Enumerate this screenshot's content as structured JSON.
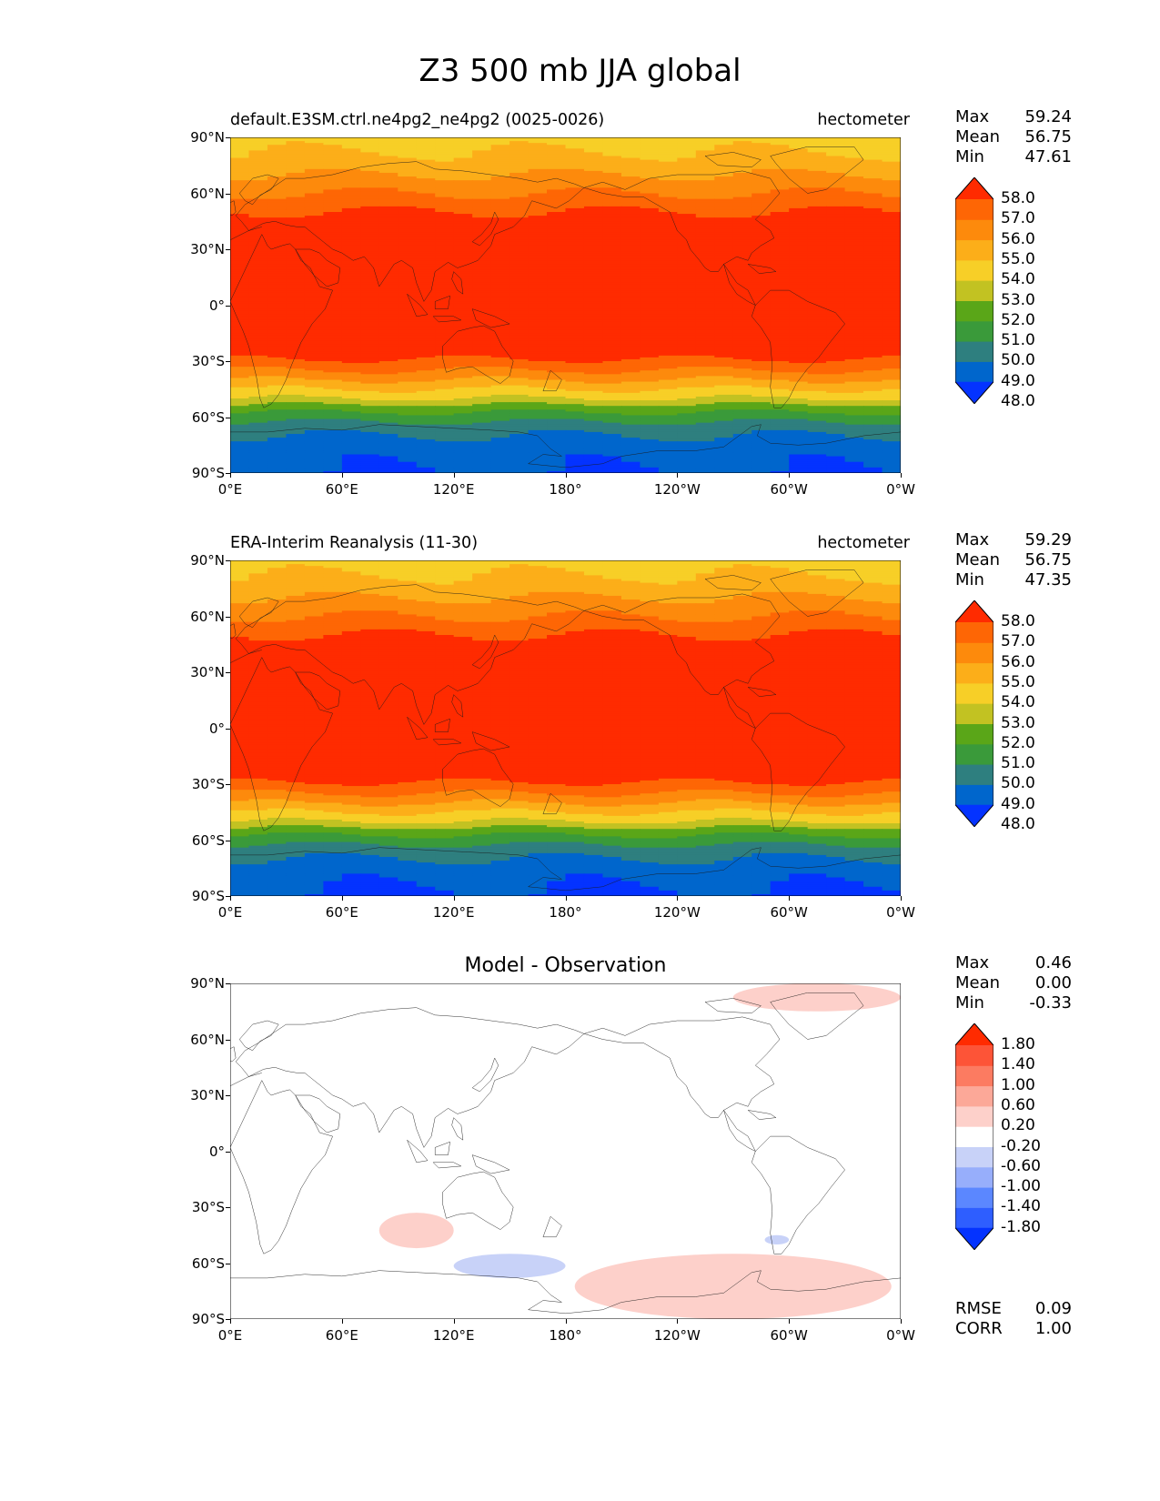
{
  "figure_title": "Z3 500 mb JJA global",
  "axes": {
    "lat_ticks": [
      "90°N",
      "60°N",
      "30°N",
      "0°",
      "30°S",
      "60°S",
      "90°S"
    ],
    "lon_ticks": [
      "0°E",
      "60°E",
      "120°E",
      "180°",
      "120°W",
      "60°W",
      "0°W"
    ]
  },
  "panels": [
    {
      "title_left": "default.E3SM.ctrl.ne4pg2_ne4pg2 (0025-0026)",
      "title_right": "hectometer",
      "stats": {
        "max_label": "Max",
        "max": "59.24",
        "mean_label": "Mean",
        "mean": "56.75",
        "min_label": "Min",
        "min": "47.61"
      },
      "colorbar_labels": [
        "58.0",
        "57.0",
        "56.0",
        "55.0",
        "54.0",
        "53.0",
        "52.0",
        "51.0",
        "50.0",
        "49.0",
        "48.0"
      ]
    },
    {
      "title_left": "ERA-Interim Reanalysis (11-30)",
      "title_right": "hectometer",
      "stats": {
        "max_label": "Max",
        "max": "59.29",
        "mean_label": "Mean",
        "mean": "56.75",
        "min_label": "Min",
        "min": "47.35"
      },
      "colorbar_labels": [
        "58.0",
        "57.0",
        "56.0",
        "55.0",
        "54.0",
        "53.0",
        "52.0",
        "51.0",
        "50.0",
        "49.0",
        "48.0"
      ]
    },
    {
      "title_center": "Model - Observation",
      "stats": {
        "max_label": "Max",
        "max": "0.46",
        "mean_label": "Mean",
        "mean": "0.00",
        "min_label": "Min",
        "min": "-0.33"
      },
      "colorbar_labels": [
        "1.80",
        "1.40",
        "1.00",
        "0.60",
        "0.20",
        "-0.20",
        "-0.60",
        "-1.00",
        "-1.40",
        "-1.80"
      ],
      "metrics": {
        "rmse_label": "RMSE",
        "rmse": "0.09",
        "corr_label": "CORR",
        "corr": "1.00"
      }
    }
  ],
  "colors": {
    "field_levels": [
      "#0433ff",
      "#0066cc",
      "#2e7f7f",
      "#3a9a3a",
      "#5aa618",
      "#c2c222",
      "#f7cf27",
      "#fcae19",
      "#fd8a0c",
      "#fe6605",
      "#ff2b00"
    ],
    "diff_levels": [
      "#0433ff",
      "#2e5eff",
      "#5b87ff",
      "#97aefb",
      "#c8d2f8",
      "#ffffff",
      "#fdd0ca",
      "#fca898",
      "#fc7b61",
      "#fd5437",
      "#ff2b00"
    ]
  },
  "chart_data": [
    {
      "type": "heatmap",
      "title": "default.E3SM.ctrl.ne4pg2_ne4pg2 (0025-0026)",
      "units": "hectometer",
      "variable": "Z3 500 mb JJA",
      "x_range": [
        0,
        360
      ],
      "y_range": [
        -90,
        90
      ],
      "levels": [
        48,
        49,
        50,
        51,
        52,
        53,
        54,
        55,
        56,
        57,
        58
      ],
      "zonal_profile": {
        "lat": [
          90,
          75,
          65,
          55,
          45,
          35,
          20,
          0,
          -15,
          -25,
          -35,
          -40,
          -45,
          -50,
          -55,
          -60,
          -65,
          -75,
          -90
        ],
        "z": [
          53.5,
          54.5,
          55.5,
          56.5,
          57.5,
          58.3,
          58.8,
          58.7,
          58.4,
          57.6,
          56.0,
          55.0,
          54.0,
          53.0,
          51.5,
          50.5,
          49.5,
          48.5,
          48.0
        ]
      },
      "max": 59.24,
      "mean": 56.75,
      "min": 47.61
    },
    {
      "type": "heatmap",
      "title": "ERA-Interim Reanalysis (11-30)",
      "units": "hectometer",
      "variable": "Z3 500 mb JJA",
      "x_range": [
        0,
        360
      ],
      "y_range": [
        -90,
        90
      ],
      "levels": [
        48,
        49,
        50,
        51,
        52,
        53,
        54,
        55,
        56,
        57,
        58
      ],
      "zonal_profile": {
        "lat": [
          90,
          75,
          65,
          55,
          45,
          35,
          20,
          0,
          -15,
          -25,
          -35,
          -40,
          -45,
          -50,
          -55,
          -60,
          -65,
          -75,
          -90
        ],
        "z": [
          53.5,
          54.5,
          55.5,
          56.5,
          57.5,
          58.3,
          58.8,
          58.7,
          58.4,
          57.6,
          56.0,
          55.0,
          54.0,
          53.0,
          51.5,
          50.5,
          49.5,
          48.5,
          47.8
        ]
      },
      "max": 59.29,
      "mean": 56.75,
      "min": 47.35
    },
    {
      "type": "heatmap",
      "title": "Model - Observation",
      "x_range": [
        0,
        360
      ],
      "y_range": [
        -90,
        90
      ],
      "levels": [
        -1.8,
        -1.4,
        -1.0,
        -0.6,
        -0.2,
        0.2,
        0.6,
        1.0,
        1.4,
        1.8
      ],
      "anomalies": [
        {
          "lon_range": [
            270,
            360
          ],
          "lat_range": [
            75,
            90
          ],
          "value": 0.3
        },
        {
          "lon_range": [
            80,
            120
          ],
          "lat_range": [
            -52,
            -33
          ],
          "value": 0.3
        },
        {
          "lon_range": [
            120,
            180
          ],
          "lat_range": [
            -68,
            -55
          ],
          "value": -0.3
        },
        {
          "lon_range": [
            185,
            355
          ],
          "lat_range": [
            -90,
            -55
          ],
          "value": 0.3
        },
        {
          "lon_range": [
            287,
            300
          ],
          "lat_range": [
            -50,
            -45
          ],
          "value": -0.3
        }
      ],
      "max": 0.46,
      "mean": 0.0,
      "min": -0.33,
      "rmse": 0.09,
      "corr": 1.0
    }
  ]
}
